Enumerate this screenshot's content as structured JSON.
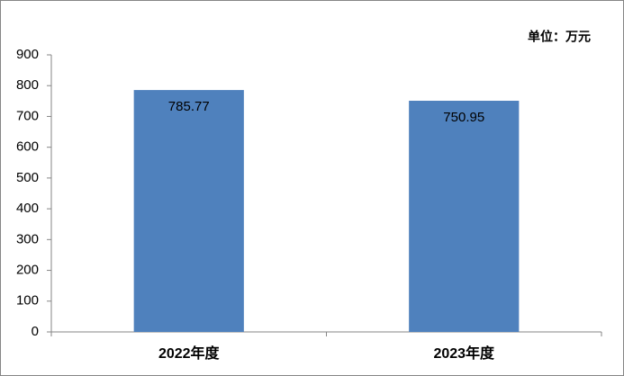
{
  "chart_data": {
    "type": "bar",
    "annotation": "单位：万元",
    "categories": [
      "2022年度",
      "2023年度"
    ],
    "values": [
      785.77,
      750.95
    ],
    "color": "#4f81bd",
    "ylim": [
      0,
      900
    ],
    "yticks": [
      0,
      100,
      200,
      300,
      400,
      500,
      600,
      700,
      800,
      900
    ],
    "grid": false
  }
}
